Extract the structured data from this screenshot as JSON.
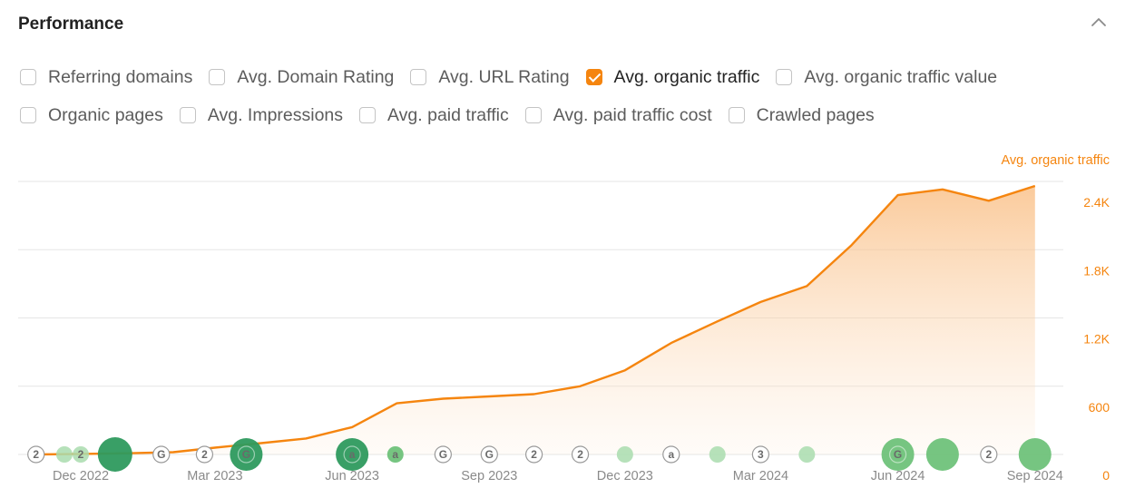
{
  "panel": {
    "title": "Performance",
    "collapse_icon": "chevron-up-icon"
  },
  "metrics": {
    "rows": [
      [
        {
          "label": "Referring domains",
          "checked": false
        },
        {
          "label": "Avg. Domain Rating",
          "checked": false
        },
        {
          "label": "Avg. URL Rating",
          "checked": false
        },
        {
          "label": "Avg. organic traffic",
          "checked": true
        },
        {
          "label": "Avg. organic traffic value",
          "checked": false
        }
      ],
      [
        {
          "label": "Organic pages",
          "checked": false
        },
        {
          "label": "Avg. Impressions",
          "checked": false
        },
        {
          "label": "Avg. paid traffic",
          "checked": false
        },
        {
          "label": "Avg. paid traffic cost",
          "checked": false
        },
        {
          "label": "Crawled pages",
          "checked": false
        }
      ]
    ]
  },
  "colors": {
    "accent": "#f5850f",
    "grid": "#e6e6e6",
    "event_dark": "#2e9a5e",
    "event_light": "#a9dcae"
  },
  "chart_data": {
    "type": "area",
    "series": [
      {
        "name": "Avg. organic traffic",
        "x": [
          "2022-11-01",
          "2022-12-01",
          "2023-01-01",
          "2023-02-01",
          "2023-03-01",
          "2023-04-01",
          "2023-05-01",
          "2023-06-01",
          "2023-07-01",
          "2023-08-01",
          "2023-09-01",
          "2023-10-01",
          "2023-11-01",
          "2023-12-01",
          "2024-01-01",
          "2024-02-01",
          "2024-03-01",
          "2024-04-01",
          "2024-05-01",
          "2024-06-01",
          "2024-07-01",
          "2024-08-01",
          "2024-09-01"
        ],
        "values": [
          0,
          5,
          10,
          20,
          60,
          100,
          140,
          240,
          450,
          490,
          510,
          530,
          600,
          740,
          980,
          1170,
          1340,
          1480,
          1840,
          2280,
          2330,
          2230,
          2360
        ]
      }
    ],
    "x_ticks": [
      {
        "date": "2022-12-01",
        "label": "Dec 2022"
      },
      {
        "date": "2023-03-01",
        "label": "Mar 2023"
      },
      {
        "date": "2023-06-01",
        "label": "Jun 2023"
      },
      {
        "date": "2023-09-01",
        "label": "Sep 2023"
      },
      {
        "date": "2023-12-01",
        "label": "Dec 2023"
      },
      {
        "date": "2024-03-01",
        "label": "Mar 2024"
      },
      {
        "date": "2024-06-01",
        "label": "Jun 2024"
      },
      {
        "date": "2024-09-01",
        "label": "Sep 2024"
      }
    ],
    "y_ticks": [
      {
        "value": 0,
        "label": "0"
      },
      {
        "value": 600,
        "label": "600"
      },
      {
        "value": 1200,
        "label": "1.2K"
      },
      {
        "value": 1800,
        "label": "1.8K"
      },
      {
        "value": 2400,
        "label": "2.4K"
      }
    ],
    "ylabel": "Avg. organic traffic",
    "ylim": [
      0,
      2400
    ],
    "xlim": [
      "2022-10-20",
      "2024-09-20"
    ],
    "grid": true,
    "events": [
      {
        "date": "2022-11-01",
        "label": "2",
        "style": "outline",
        "size": "small"
      },
      {
        "date": "2022-11-20",
        "label": "",
        "style": "light",
        "size": "small"
      },
      {
        "date": "2022-12-01",
        "label": "2",
        "style": "light",
        "size": "small"
      },
      {
        "date": "2022-12-24",
        "label": "",
        "style": "dark",
        "size": "large"
      },
      {
        "date": "2023-01-24",
        "label": "G",
        "style": "outline",
        "size": "small"
      },
      {
        "date": "2023-02-22",
        "label": "2",
        "style": "outline",
        "size": "small"
      },
      {
        "date": "2023-03-22",
        "label": "G",
        "style": "dark",
        "size": "medium"
      },
      {
        "date": "2023-06-01",
        "label": "a",
        "style": "dark",
        "size": "medium"
      },
      {
        "date": "2023-06-30",
        "label": "a",
        "style": "mid",
        "size": "small"
      },
      {
        "date": "2023-08-01",
        "label": "G",
        "style": "outline",
        "size": "small"
      },
      {
        "date": "2023-09-01",
        "label": "G",
        "style": "outline",
        "size": "small"
      },
      {
        "date": "2023-10-01",
        "label": "2",
        "style": "outline",
        "size": "small"
      },
      {
        "date": "2023-11-01",
        "label": "2",
        "style": "outline",
        "size": "small"
      },
      {
        "date": "2023-12-01",
        "label": "",
        "style": "light",
        "size": "small"
      },
      {
        "date": "2024-01-01",
        "label": "a",
        "style": "outline",
        "size": "small"
      },
      {
        "date": "2024-02-01",
        "label": "",
        "style": "light",
        "size": "small"
      },
      {
        "date": "2024-03-01",
        "label": "3",
        "style": "outline",
        "size": "small"
      },
      {
        "date": "2024-04-01",
        "label": "",
        "style": "light",
        "size": "small"
      },
      {
        "date": "2024-06-01",
        "label": "G",
        "style": "mid",
        "size": "medium"
      },
      {
        "date": "2024-07-01",
        "label": "",
        "style": "mid",
        "size": "medium"
      },
      {
        "date": "2024-08-01",
        "label": "2",
        "style": "outline",
        "size": "small"
      },
      {
        "date": "2024-09-01",
        "label": "",
        "style": "mid",
        "size": "medium"
      }
    ]
  }
}
